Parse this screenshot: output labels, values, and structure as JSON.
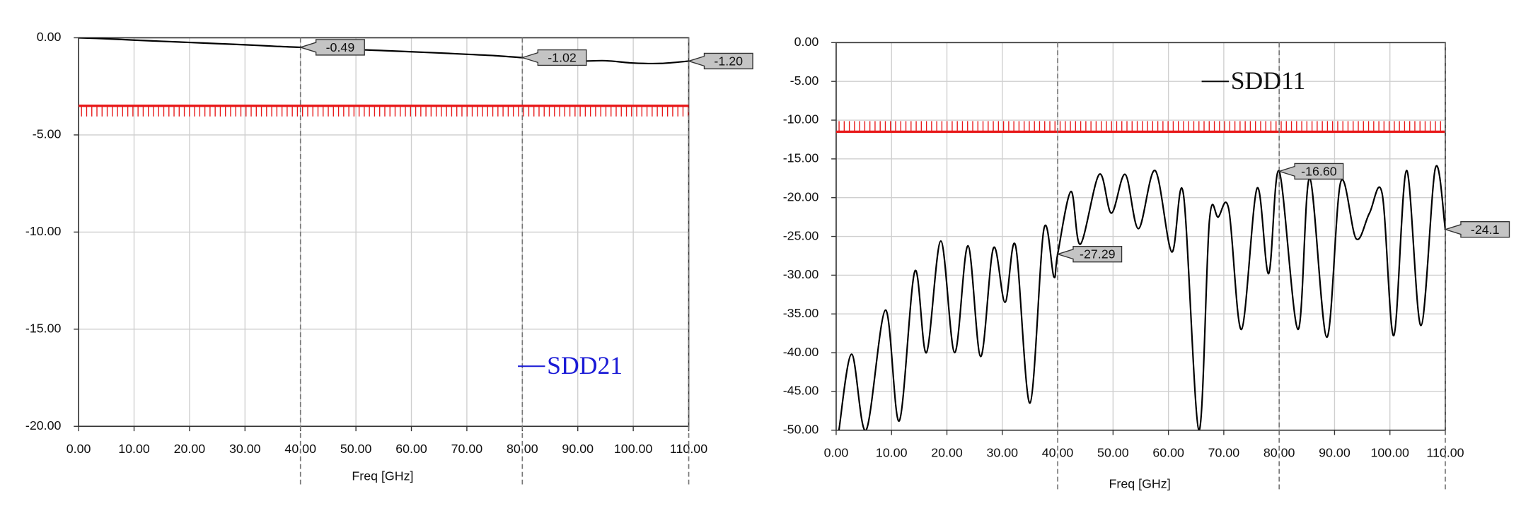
{
  "chart_data": [
    {
      "type": "line",
      "xlabel": "Freq [GHz]",
      "xlim": [
        0,
        110
      ],
      "xticks": [
        {
          "value": 0,
          "label": "0.00"
        },
        {
          "value": 10,
          "label": "10.00"
        },
        {
          "value": 20,
          "label": "20.00"
        },
        {
          "value": 30,
          "label": "30.00"
        },
        {
          "value": 40,
          "label": "40.00"
        },
        {
          "value": 50,
          "label": "50.00"
        },
        {
          "value": 60,
          "label": "60.00"
        },
        {
          "value": 70,
          "label": "70.00"
        },
        {
          "value": 80,
          "label": "80.00"
        },
        {
          "value": 90,
          "label": "90.00"
        },
        {
          "value": 100,
          "label": "100.00"
        },
        {
          "value": 110,
          "label": "110.00"
        }
      ],
      "ylim": [
        -20,
        0
      ],
      "yticks": [
        {
          "value": 0,
          "label": "0.00"
        },
        {
          "value": -5,
          "label": "-5.00"
        },
        {
          "value": -10,
          "label": "-10.00"
        },
        {
          "value": -15,
          "label": "-15.00"
        },
        {
          "value": -20,
          "label": "-20.00"
        }
      ],
      "grid": true,
      "legend_position": "lower right",
      "legend_color": "#1a1ad6",
      "limit": {
        "value": -3.5,
        "color": "#e8191a",
        "hatch": "below"
      },
      "x": [
        0,
        5,
        10,
        15,
        20,
        25,
        30,
        35,
        40,
        45,
        50,
        55,
        60,
        65,
        70,
        75,
        80,
        85,
        90,
        95,
        100,
        105,
        110
      ],
      "series": [
        {
          "name": "SDD21",
          "color": "#000000",
          "values": [
            0,
            -0.05,
            -0.12,
            -0.18,
            -0.24,
            -0.3,
            -0.36,
            -0.43,
            -0.49,
            -0.5,
            -0.6,
            -0.66,
            -0.72,
            -0.78,
            -0.85,
            -0.92,
            -1.02,
            -1.1,
            -1.2,
            -1.18,
            -1.3,
            -1.32,
            -1.2
          ]
        }
      ],
      "markers": {
        "x": [
          40,
          80,
          110
        ],
        "values": [
          -0.49,
          -1.02,
          -1.2
        ],
        "value_labels": [
          "-0.49",
          "-1.02",
          "-1.20"
        ]
      }
    },
    {
      "type": "line",
      "xlabel": "Freq [GHz]",
      "xlim": [
        0,
        110
      ],
      "xticks": [
        {
          "value": 0,
          "label": "0.00"
        },
        {
          "value": 10,
          "label": "10.00"
        },
        {
          "value": 20,
          "label": "20.00"
        },
        {
          "value": 30,
          "label": "30.00"
        },
        {
          "value": 40,
          "label": "40.00"
        },
        {
          "value": 50,
          "label": "50.00"
        },
        {
          "value": 60,
          "label": "60.00"
        },
        {
          "value": 70,
          "label": "70.00"
        },
        {
          "value": 80,
          "label": "80.00"
        },
        {
          "value": 90,
          "label": "90.00"
        },
        {
          "value": 100,
          "label": "100.00"
        },
        {
          "value": 110,
          "label": "110.00"
        }
      ],
      "ylim": [
        -50,
        0
      ],
      "yticks": [
        {
          "value": 0,
          "label": "0.00"
        },
        {
          "value": -5,
          "label": "-5.00"
        },
        {
          "value": -10,
          "label": "-10.00"
        },
        {
          "value": -15,
          "label": "-15.00"
        },
        {
          "value": -20,
          "label": "-20.00"
        },
        {
          "value": -25,
          "label": "-25.00"
        },
        {
          "value": -30,
          "label": "-30.00"
        },
        {
          "value": -35,
          "label": "-35.00"
        },
        {
          "value": -40,
          "label": "-40.00"
        },
        {
          "value": -45,
          "label": "-45.00"
        },
        {
          "value": -50,
          "label": "-50.00"
        }
      ],
      "grid": true,
      "legend_position": "upper center",
      "legend_color": "#111111",
      "limit": {
        "value": -11.5,
        "color": "#e8191a",
        "hatch": "above"
      },
      "x": [
        0.5,
        2.8,
        5.4,
        8.9,
        11.4,
        14.2,
        16.3,
        18.9,
        21.4,
        23.8,
        26.1,
        28.4,
        30.5,
        32.4,
        35,
        37.5,
        39.3,
        40,
        42.4,
        44.1,
        47.5,
        49.7,
        52.2,
        54.6,
        57.6,
        60.6,
        62.7,
        65.5,
        67.4,
        69,
        70.9,
        73.2,
        76,
        78.1,
        80,
        83.4,
        85.5,
        88.6,
        91.1,
        93.9,
        96.3,
        98.6,
        100.7,
        103,
        105.6,
        108.2,
        110
      ],
      "series": [
        {
          "name": "SDD11",
          "color": "#000000",
          "values": [
            -50,
            -40.2,
            -50,
            -34.5,
            -48.8,
            -29.5,
            -40,
            -25.6,
            -40,
            -26.2,
            -40.5,
            -26.5,
            -33.5,
            -26.2,
            -46.5,
            -24.1,
            -30.2,
            -27.29,
            -19.2,
            -26,
            -17,
            -22,
            -17,
            -24,
            -16.5,
            -27,
            -19.5,
            -50,
            -23,
            -22.5,
            -21.5,
            -37,
            -18.8,
            -29.8,
            -16.6,
            -37,
            -17.5,
            -38,
            -18,
            -25.3,
            -22,
            -19.5,
            -37.8,
            -16.5,
            -36.5,
            -16.2,
            -24.1
          ]
        }
      ],
      "markers": {
        "x": [
          40,
          80,
          110
        ],
        "values": [
          -27.29,
          -16.6,
          -24.1
        ],
        "value_labels": [
          "-27.29",
          "-16.60",
          "-24.1"
        ]
      }
    }
  ]
}
